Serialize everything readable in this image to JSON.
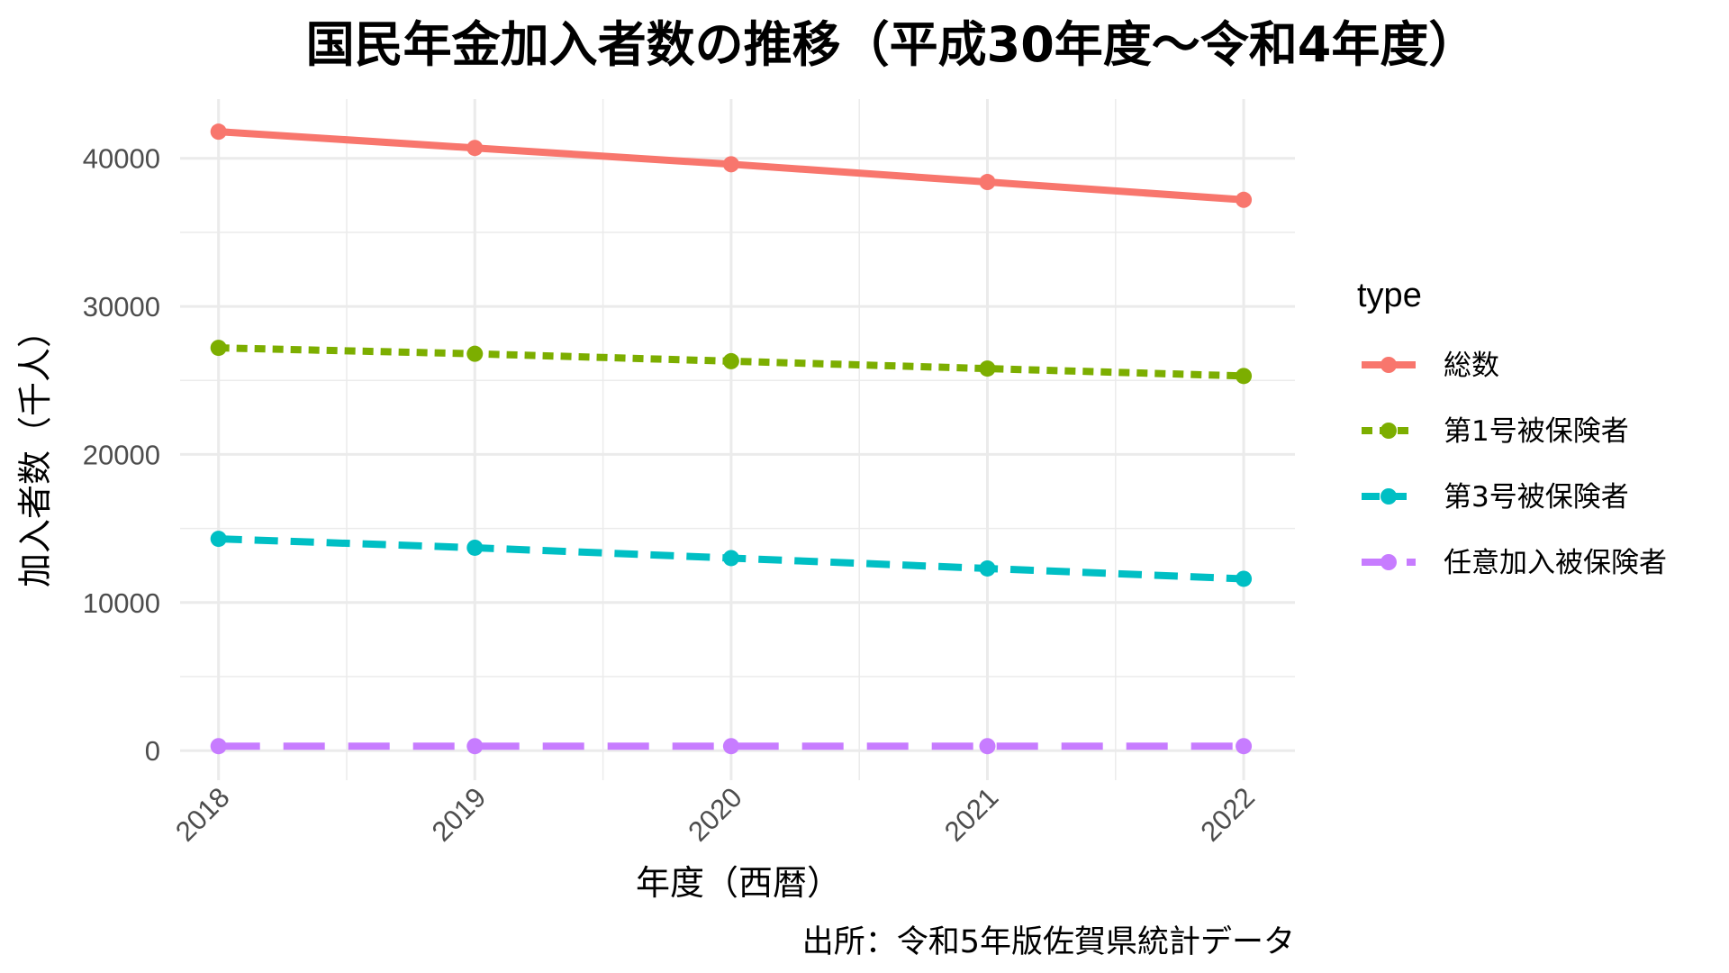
{
  "chart_data": {
    "type": "line",
    "title": "国民年金加入者数の推移（平成30年度～令和4年度）",
    "xlabel": "年度（西暦）",
    "ylabel": "加入者数（千人）",
    "caption": "出所：令和5年版佐賀県統計データ",
    "x": [
      2018,
      2019,
      2020,
      2021,
      2022
    ],
    "x_tick_labels": [
      "2018",
      "2019",
      "2020",
      "2021",
      "2022"
    ],
    "xlim": [
      2017.85,
      2022.2
    ],
    "ylim": [
      -2000,
      44000
    ],
    "y_ticks": [
      0,
      10000,
      20000,
      30000,
      40000
    ],
    "y_tick_labels": [
      "0",
      "10000",
      "20000",
      "30000",
      "40000"
    ],
    "grid": true,
    "legend": {
      "title": "type",
      "position": "right"
    },
    "series": [
      {
        "name": "総数",
        "values": [
          41800,
          40700,
          39600,
          38400,
          37200
        ],
        "color": "#F8766D",
        "line_style": "solid"
      },
      {
        "name": "第1号被保険者",
        "values": [
          27200,
          26800,
          26300,
          25800,
          25300
        ],
        "color": "#7CAE00",
        "line_style": "dotted"
      },
      {
        "name": "第3号被保険者",
        "values": [
          14300,
          13700,
          13000,
          12300,
          11600
        ],
        "color": "#00BFC4",
        "line_style": "dashed"
      },
      {
        "name": "任意加入被保険者",
        "values": [
          300,
          300,
          300,
          300,
          300
        ],
        "color": "#C77CFF",
        "line_style": "longdash"
      }
    ]
  }
}
